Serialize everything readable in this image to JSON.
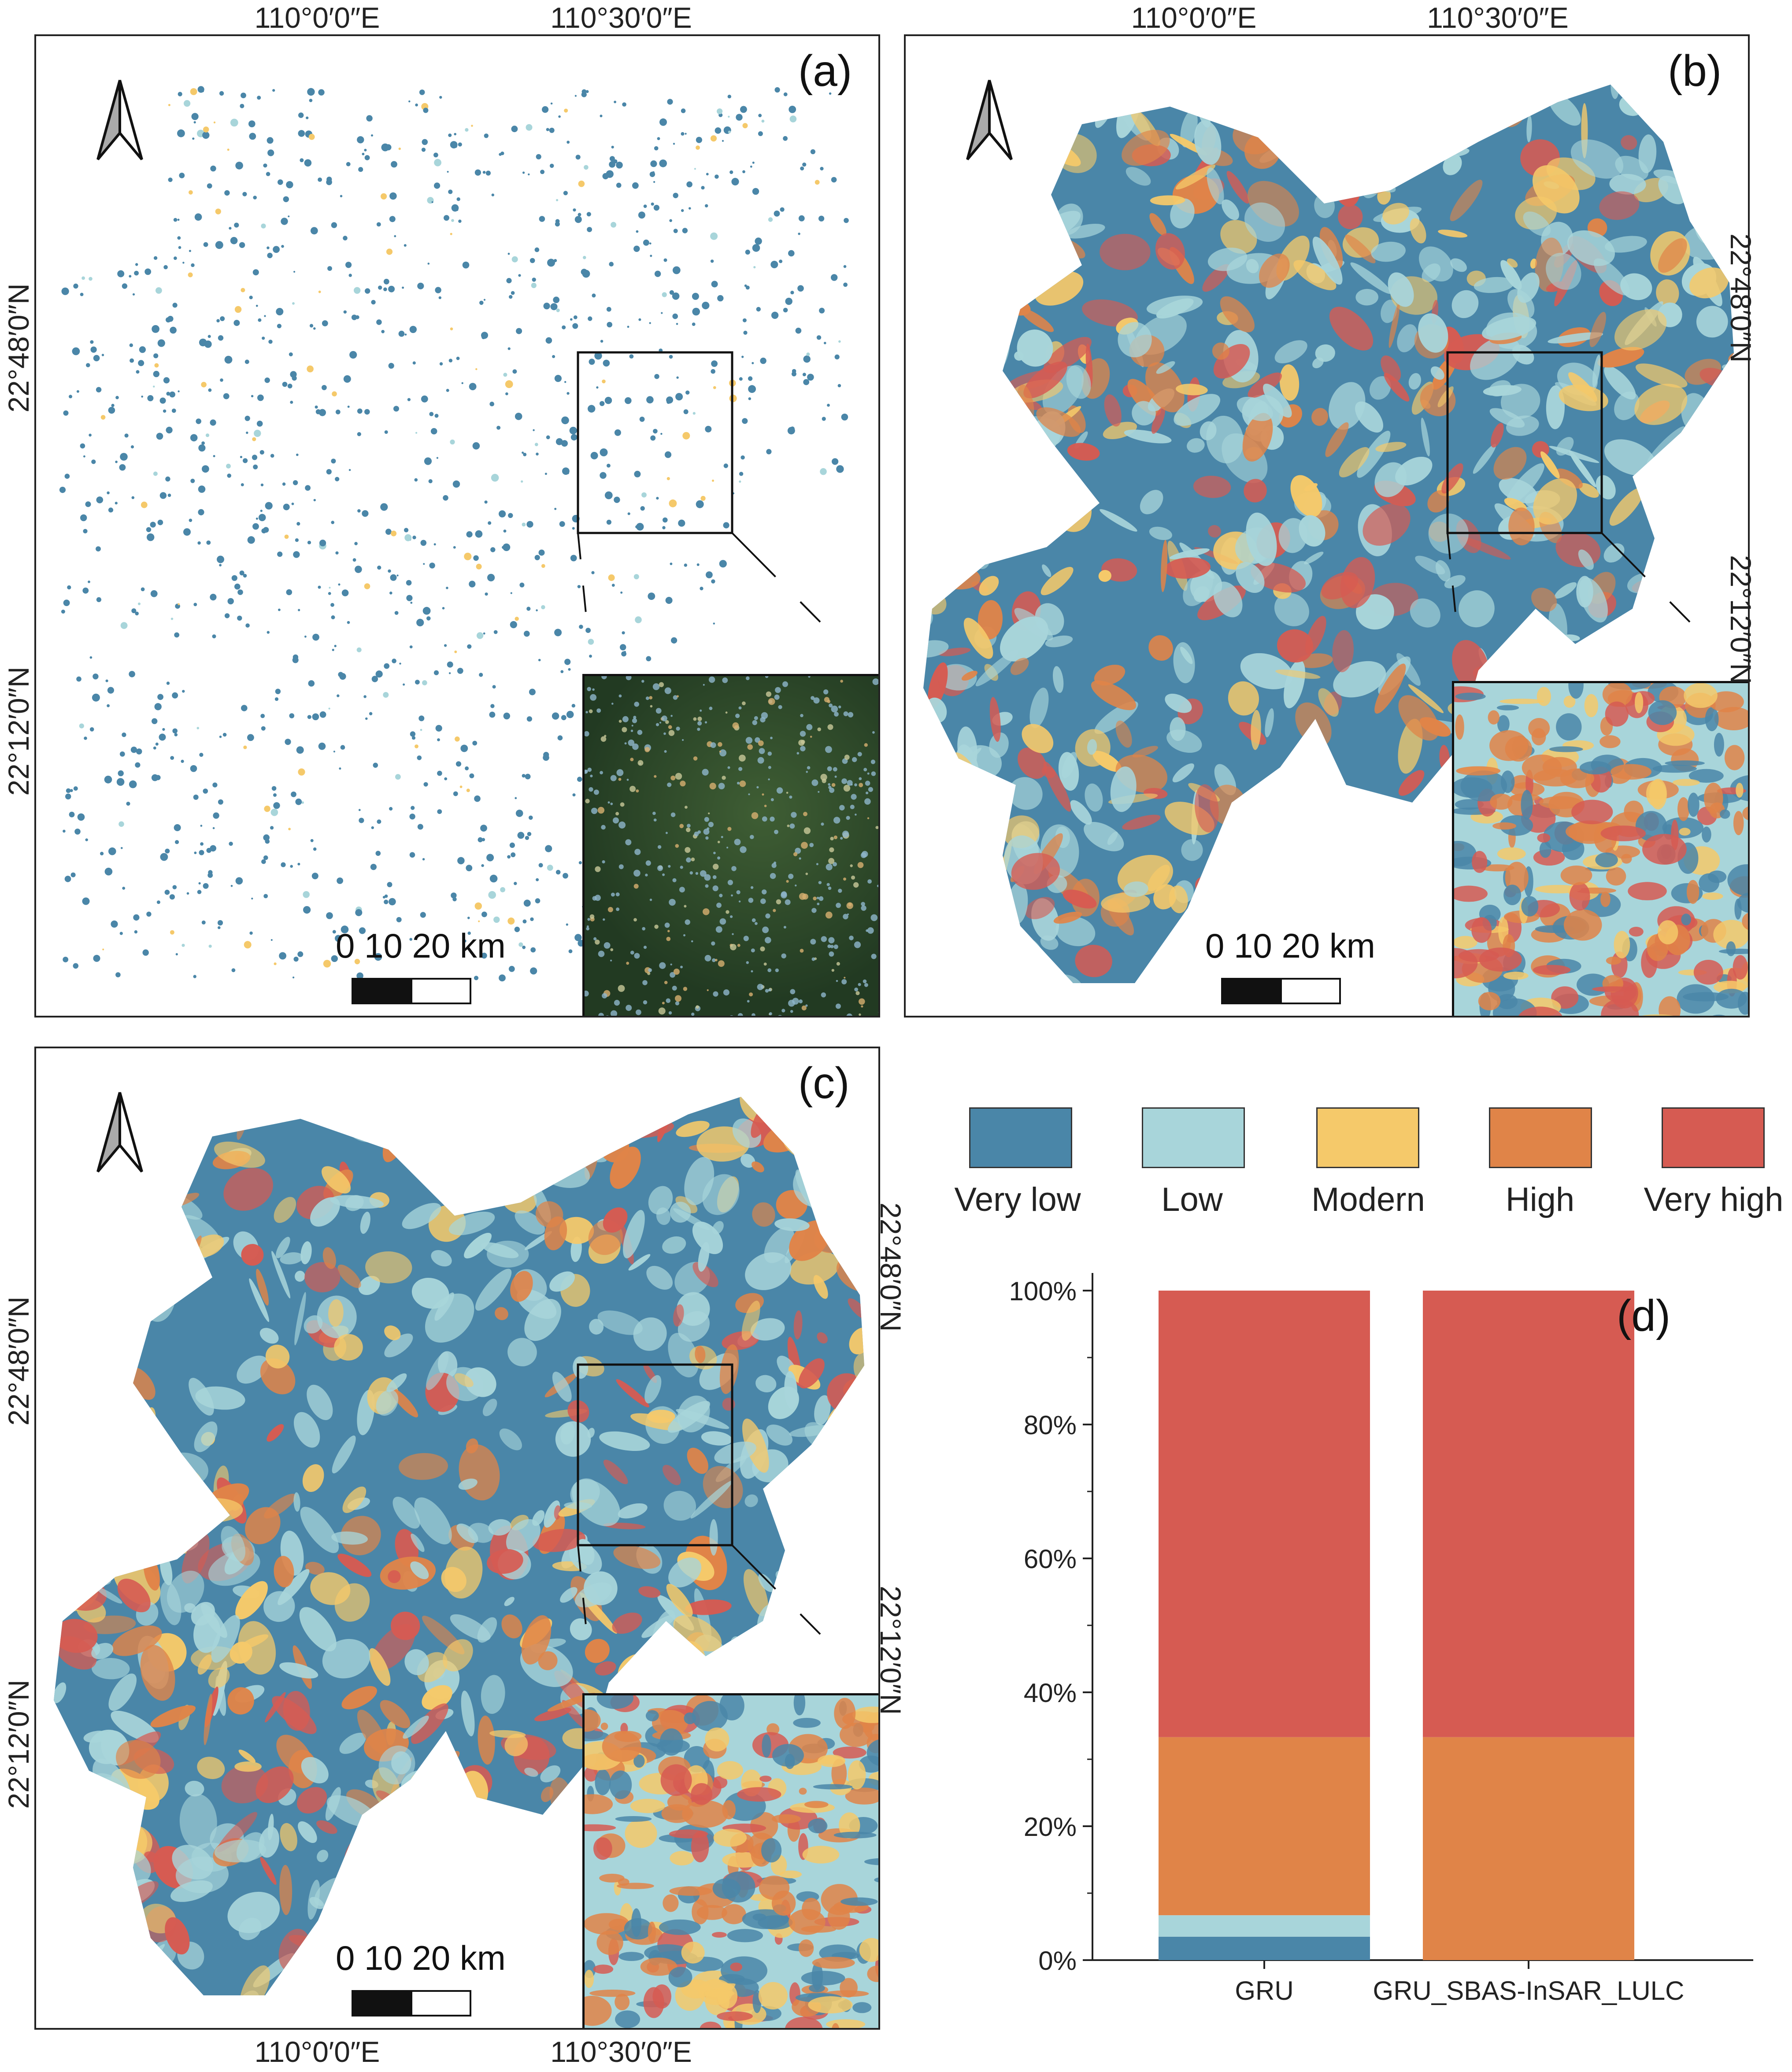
{
  "figure": {
    "panels": [
      {
        "id": "a",
        "label": "(a)",
        "type": "map",
        "top_lon_labels": [
          "110°0′0″E",
          "110°30′0″E"
        ],
        "left_lat_labels": [
          "22°48′0″N",
          "22°12′0″N"
        ],
        "scale_text": "0 10 20 km"
      },
      {
        "id": "b",
        "label": "(b)",
        "type": "map",
        "top_lon_labels": [
          "110°0′0″E",
          "110°30′0″E"
        ],
        "right_lat_labels": [
          "22°48′0″N",
          "22°12′0″N"
        ],
        "scale_text": "0 10 20 km"
      },
      {
        "id": "c",
        "label": "(c)",
        "type": "map",
        "bottom_lon_labels": [
          "110°0′0″E",
          "110°30′0″E"
        ],
        "left_lat_labels": [
          "22°48′0″N",
          "22°12′0″N"
        ],
        "right_lat_labels": [
          "22°48′0″N",
          "22°12′0″N"
        ],
        "scale_text": "0 10 20 km"
      }
    ],
    "legend": [
      {
        "label": "Very low",
        "color": "#4a86a8"
      },
      {
        "label": "Low",
        "color": "#a8d5da"
      },
      {
        "label": "Modern",
        "color": "#f5c96a"
      },
      {
        "label": "High",
        "color": "#e08448"
      },
      {
        "label": "Very high",
        "color": "#d65b52"
      }
    ],
    "colors": {
      "very_low": "#4a86a8",
      "low": "#a8d5da",
      "modern": "#f5c96a",
      "high": "#e08448",
      "very_high": "#d65b52",
      "satellite": "#2e4a2a"
    }
  },
  "chart_data": {
    "type": "bar",
    "stacked": true,
    "panel_label": "(d)",
    "categories": [
      "GRU",
      "GRU_SBAS-InSAR_LULC"
    ],
    "series": [
      {
        "name": "Very low",
        "color": "#4a86a8",
        "values": [
          3.5,
          0
        ]
      },
      {
        "name": "Low",
        "color": "#a8d5da",
        "values": [
          3.2,
          0
        ]
      },
      {
        "name": "Modern",
        "color": "#f5c96a",
        "values": [
          0,
          0
        ]
      },
      {
        "name": "High",
        "color": "#e08448",
        "values": [
          26.6,
          33.3
        ]
      },
      {
        "name": "Very high",
        "color": "#d65b52",
        "values": [
          66.7,
          66.7
        ]
      }
    ],
    "yticks": [
      "0%",
      "20%",
      "40%",
      "60%",
      "80%",
      "100%"
    ],
    "ylim": [
      0,
      100
    ],
    "xlabel": "",
    "ylabel": ""
  }
}
